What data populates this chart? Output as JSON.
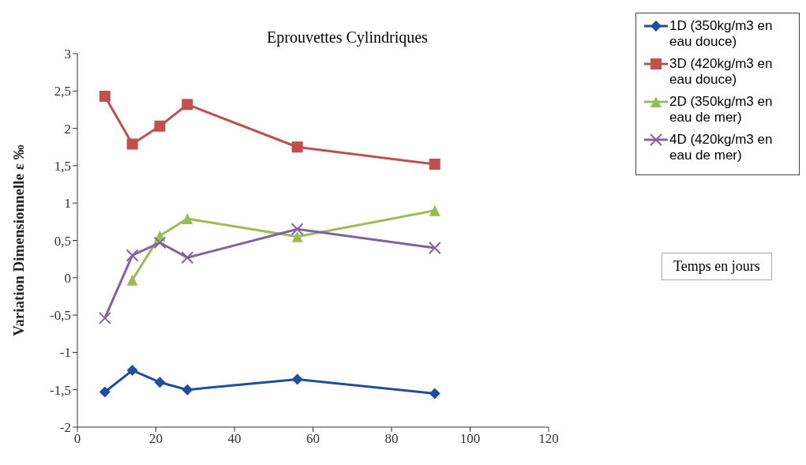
{
  "chart_data": {
    "type": "line",
    "title": "Eprouvettes Cylindriques",
    "ylabel": "Variation Dimensionnelle   ε ‰",
    "annotations": [
      "Temps en jours"
    ],
    "x": [
      7,
      14,
      21,
      28,
      56,
      91
    ],
    "xlim": [
      0,
      120
    ],
    "xticks": [
      0,
      20,
      40,
      60,
      80,
      100,
      120
    ],
    "ylim": [
      -2,
      3
    ],
    "yticks": [
      {
        "value": -2,
        "label": "-2"
      },
      {
        "value": -1.5,
        "label": "-1,5"
      },
      {
        "value": -1,
        "label": "-1"
      },
      {
        "value": -0.5,
        "label": "-0,5"
      },
      {
        "value": 0,
        "label": "0"
      },
      {
        "value": 0.5,
        "label": "0,5"
      },
      {
        "value": 1,
        "label": "1"
      },
      {
        "value": 1.5,
        "label": "1,5"
      },
      {
        "value": 2,
        "label": "2"
      },
      {
        "value": 2.5,
        "label": "2,5"
      },
      {
        "value": 3,
        "label": "3"
      }
    ],
    "grid": false,
    "legend": "top right",
    "series": [
      {
        "name": "1D (350kg/m3 en eau douce)",
        "color": "#1f4e9c",
        "marker": "diamond",
        "values": [
          -1.53,
          -1.24,
          -1.4,
          -1.5,
          -1.36,
          -1.55
        ]
      },
      {
        "name": "3D (420kg/m3 en eau douce)",
        "color": "#c0504d",
        "marker": "square",
        "values": [
          2.43,
          1.79,
          2.03,
          2.32,
          1.75,
          1.52
        ]
      },
      {
        "name": "2D (350kg/m3 en eau de mer)",
        "color": "#9bbb59",
        "marker": "triangle",
        "values": [
          null,
          -0.03,
          0.56,
          0.79,
          0.55,
          0.9
        ]
      },
      {
        "name": "4D (420kg/m3 en eau de mer)",
        "color": "#8064a2",
        "marker": "cross",
        "values": [
          -0.54,
          0.3,
          0.47,
          0.27,
          0.65,
          0.4
        ]
      }
    ]
  }
}
